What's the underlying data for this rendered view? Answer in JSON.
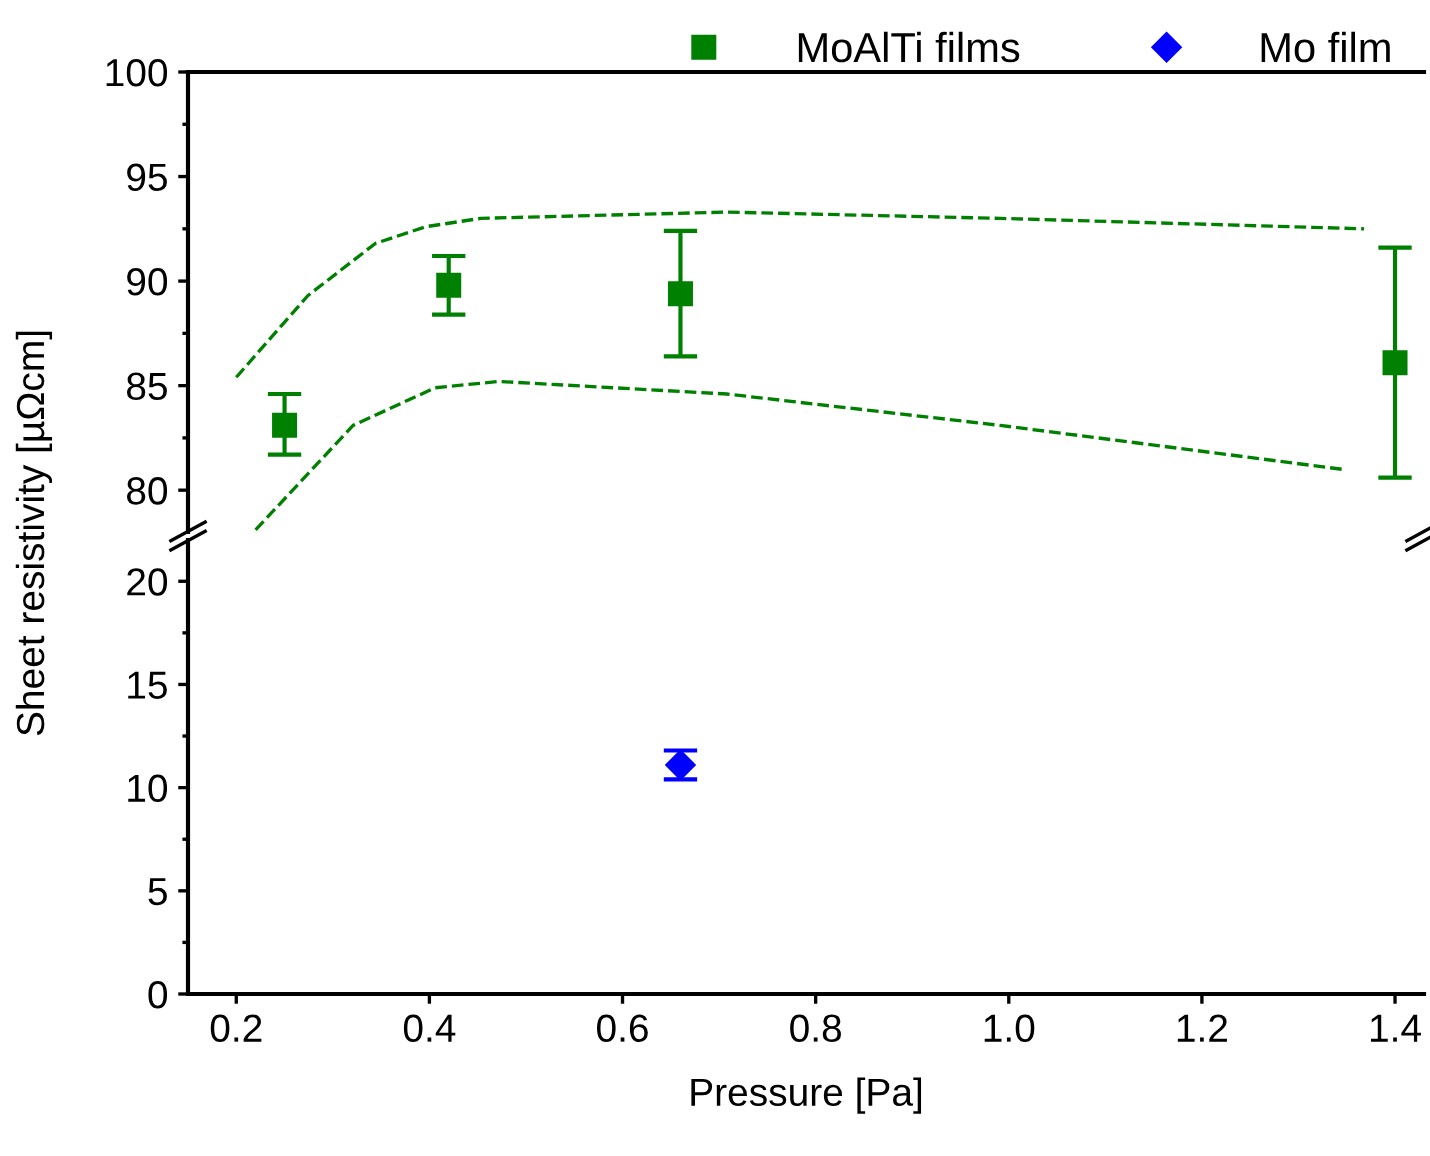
{
  "chart_data": [
    {
      "type": "scatter",
      "legend": "top right",
      "tick_labels": "y",
      "ylim": [
        78,
        100
      ],
      "yticks": [
        80,
        85,
        90,
        95,
        100
      ],
      "xlim": [
        0.15,
        1.43
      ],
      "marker": "square",
      "series": [
        {
          "name": "MoAlTi films",
          "color": "#008000",
          "x": [
            0.25,
            0.42,
            0.66,
            1.4
          ],
          "values": [
            83.1,
            89.8,
            89.4,
            86.1
          ],
          "errors": [
            [
              81.7,
              84.6
            ],
            [
              88.4,
              91.2
            ],
            [
              86.4,
              92.4
            ],
            [
              80.6,
              91.6
            ]
          ]
        },
        {
          "type": "line",
          "line_style": "dashed",
          "marker": "none",
          "color": "#008000",
          "x": [
            0.2,
            0.274,
            0.344,
            0.396,
            0.453,
            0.708,
            0.991,
            1.368
          ],
          "values": [
            85.4,
            89.3,
            91.8,
            92.6,
            93.0,
            93.3,
            93.0,
            92.5
          ]
        },
        {
          "type": "line",
          "line_style": "dashed",
          "marker": "none",
          "color": "#008000",
          "x": [
            0.22,
            0.321,
            0.406,
            0.472,
            0.708,
            0.991,
            1.345
          ],
          "values": [
            78.1,
            83.1,
            84.9,
            85.2,
            84.6,
            83.1,
            81.0
          ]
        }
      ]
    },
    {
      "type": "scatter",
      "xlabel": "Pressure [Pa]",
      "ylabel": "Sheet resistivity [µΩcm]",
      "ylim": [
        0,
        22
      ],
      "yticks": [
        0,
        5,
        10,
        15,
        20
      ],
      "xlim": [
        0.15,
        1.43
      ],
      "xticks": [
        0.2,
        0.4,
        0.6,
        0.8,
        {
          "value": 1.0,
          "label": "1.0"
        },
        1.2,
        1.4
      ],
      "marker": "diamond",
      "series": [
        {
          "name": "Mo film",
          "color": "#0000ff",
          "x": [
            0.66
          ],
          "values": [
            11.1
          ],
          "errors": [
            [
              10.4,
              11.8
            ]
          ]
        }
      ]
    }
  ]
}
